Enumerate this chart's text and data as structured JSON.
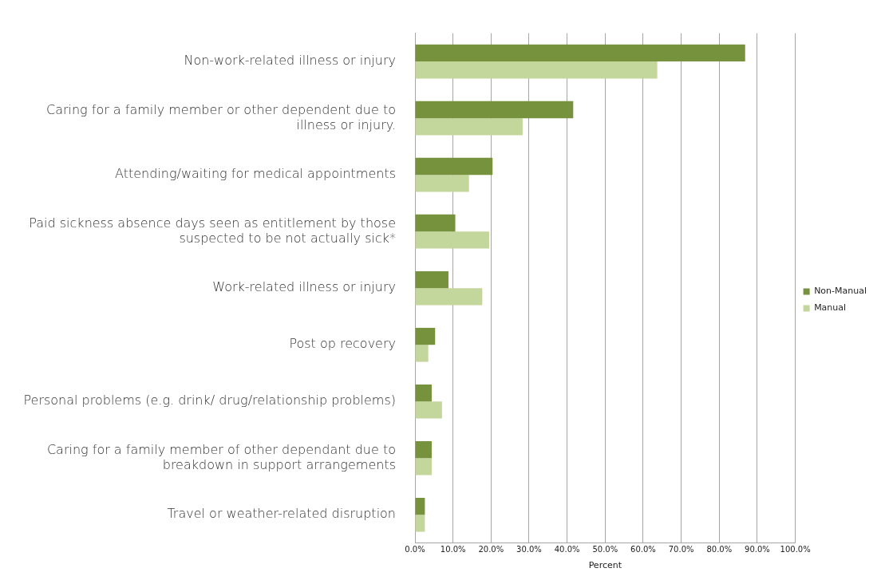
{
  "chart_data": {
    "type": "bar",
    "orientation": "horizontal",
    "xlabel": "Percent",
    "categories": [
      "Non-work-related illness or injury",
      "Caring for a family member or other dependent due to illness or injury.",
      "Attending/waiting for medical appointments",
      "Paid sickness absence days seen as entitlement by those suspected to be not actually sick*",
      "Work-related illness or injury",
      "Post op recovery",
      "Personal problems (e.g. drink/ drug/relationship problems)",
      "Caring for a family member of other dependant due to breakdown in support arrangements",
      "Travel or weather-related disruption"
    ],
    "series": [
      {
        "name": "Non-Manual",
        "color": "#76923c",
        "values": [
          86.8,
          41.6,
          20.4,
          10.6,
          8.8,
          5.3,
          4.4,
          4.4,
          2.6
        ]
      },
      {
        "name": "Manual",
        "color": "#c3d69b",
        "values": [
          63.7,
          28.3,
          14.2,
          19.5,
          17.7,
          3.5,
          7.1,
          4.4,
          2.6
        ]
      }
    ],
    "xlim": [
      0,
      100
    ],
    "xticks": [
      {
        "value": 0,
        "label": "0.0%"
      },
      {
        "value": 10,
        "label": "10.0%"
      },
      {
        "value": 20,
        "label": "20.0%"
      },
      {
        "value": 30,
        "label": "30.0%"
      },
      {
        "value": 40,
        "label": "40.0%"
      },
      {
        "value": 50,
        "label": "50.0%"
      },
      {
        "value": 60,
        "label": "60.0%"
      },
      {
        "value": 70,
        "label": "70.0%"
      },
      {
        "value": 80,
        "label": "80.0%"
      },
      {
        "value": 90,
        "label": "90.0%"
      },
      {
        "value": 100,
        "label": "100.0%"
      }
    ],
    "grid": "x",
    "legend": "right"
  }
}
